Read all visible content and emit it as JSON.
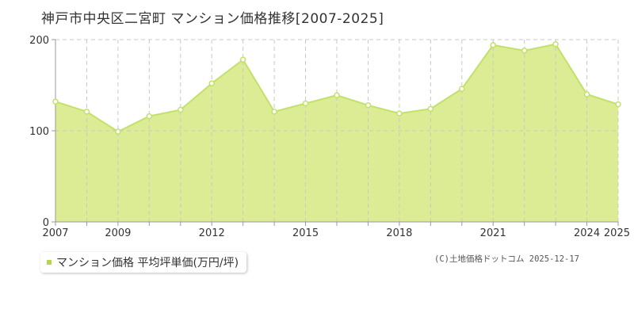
{
  "title": "神戸市中央区二宮町 マンション価格推移[2007-2025]",
  "legend": {
    "label": "マンション価格 平均坪単価(万円/坪)"
  },
  "credit": "(C)土地価格ドットコム 2025-12-17",
  "colors": {
    "fill": "#dcec94",
    "line": "#c2e16a",
    "marker_stroke": "#c2e16a",
    "marker_fill": "#ffffff",
    "grid": "#c8c8c8",
    "axis": "#999999",
    "swatch": "#b5d84a"
  },
  "chart_data": {
    "type": "area",
    "x": [
      2007,
      2008,
      2009,
      2010,
      2011,
      2012,
      2013,
      2014,
      2015,
      2016,
      2017,
      2018,
      2019,
      2020,
      2021,
      2022,
      2023,
      2024,
      2025
    ],
    "series": [
      {
        "name": "マンション価格 平均坪単価(万円/坪)",
        "values": [
          132,
          121,
          99,
          116,
          123,
          152,
          178,
          121,
          130,
          139,
          128,
          119,
          124,
          146,
          194,
          188,
          195,
          140,
          129
        ]
      }
    ],
    "xlim": [
      2007,
      2025
    ],
    "ylim": [
      0,
      200
    ],
    "y_ticks": [
      0,
      100,
      200
    ],
    "x_tick_labels": [
      "2007",
      "2009",
      "2012",
      "2015",
      "2018",
      "2021",
      "2024",
      "2025"
    ],
    "grid": true,
    "legend_position": "bottom-left"
  }
}
